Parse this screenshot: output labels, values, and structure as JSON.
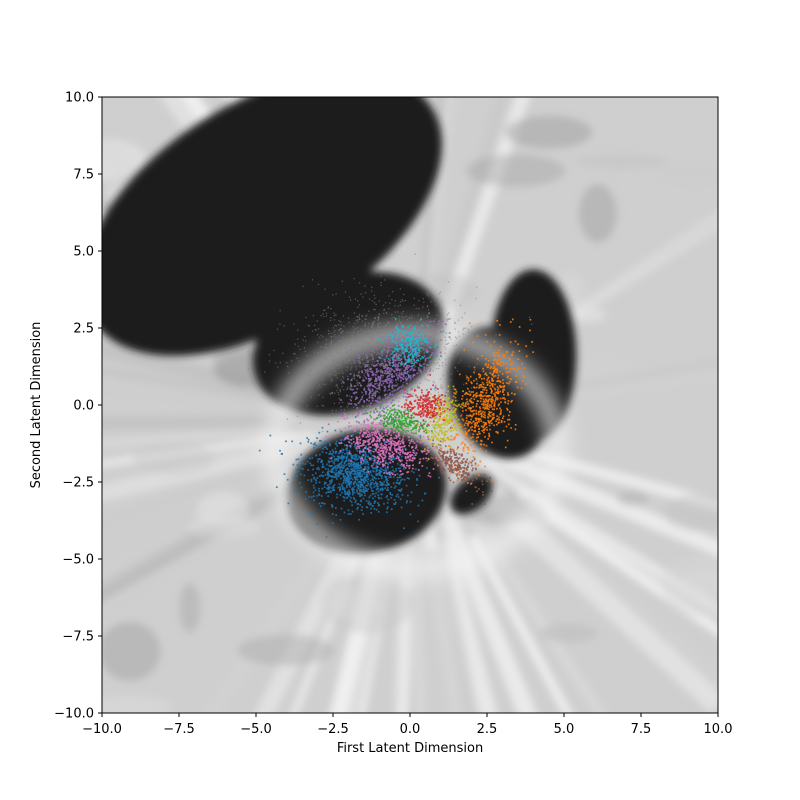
{
  "chart_data": {
    "type": "scatter",
    "title": "",
    "xlabel": "First Latent Dimension",
    "ylabel": "Second Latent Dimension",
    "xlim": [
      -10,
      10
    ],
    "ylim": [
      -10,
      10
    ],
    "xticks": [
      -10,
      -7.5,
      -5,
      -2.5,
      0,
      2.5,
      5,
      7.5,
      10
    ],
    "yticks": [
      -10,
      -7.5,
      -5,
      -2.5,
      0,
      2.5,
      5,
      7.5,
      10
    ],
    "xtick_labels": [
      "−10.0",
      "−7.5",
      "−5.0",
      "−2.5",
      "0.0",
      "2.5",
      "5.0",
      "7.5",
      "10.0"
    ],
    "ytick_labels": [
      "−10.0",
      "−7.5",
      "−5.0",
      "−2.5",
      "0.0",
      "2.5",
      "5.0",
      "7.5",
      "10.0"
    ],
    "grid": false,
    "background": "grayscale latent-space decoding heatmap",
    "dark_regions": [
      {
        "cx": -4.8,
        "cy": 6.2,
        "rx": 6.5,
        "ry": 3.6,
        "rot": -32
      },
      {
        "cx": -2.0,
        "cy": 2.0,
        "rx": 3.2,
        "ry": 2.2,
        "rot": -20
      },
      {
        "cx": -1.4,
        "cy": -2.8,
        "rx": 2.6,
        "ry": 2.0,
        "rot": -10
      },
      {
        "cx": 2.9,
        "cy": 0.4,
        "rx": 1.6,
        "ry": 2.2,
        "rot": -20
      },
      {
        "cx": 4.0,
        "cy": 1.6,
        "rx": 1.4,
        "ry": 2.8,
        "rot": 0
      },
      {
        "cx": 2.0,
        "cy": -2.9,
        "rx": 0.8,
        "ry": 0.5,
        "rot": -40
      }
    ],
    "series": [
      {
        "color": "#1f77b4",
        "center": [
          -1.8,
          -2.2
        ],
        "spread": [
          0.85,
          0.55
        ],
        "angle": -12,
        "count": 1100
      },
      {
        "color": "#ff7f0e",
        "center": [
          2.4,
          0.1
        ],
        "spread": [
          0.42,
          1.05
        ],
        "angle": -22,
        "count": 650
      },
      {
        "color": "#2ca02c",
        "center": [
          -0.4,
          -0.5
        ],
        "spread": [
          0.45,
          0.2
        ],
        "angle": -10,
        "count": 260
      },
      {
        "color": "#d62728",
        "center": [
          0.5,
          0.0
        ],
        "spread": [
          0.35,
          0.28
        ],
        "angle": 0,
        "count": 260
      },
      {
        "color": "#9467bd",
        "center": [
          -0.6,
          1.1
        ],
        "spread": [
          0.9,
          0.45
        ],
        "angle": 48,
        "count": 620
      },
      {
        "color": "#8c564b",
        "center": [
          1.4,
          -1.9
        ],
        "spread": [
          0.5,
          0.2
        ],
        "angle": -40,
        "count": 260
      },
      {
        "color": "#e377c2",
        "center": [
          -0.8,
          -1.3
        ],
        "spread": [
          0.7,
          0.35
        ],
        "angle": -18,
        "count": 520
      },
      {
        "color": "#7f7f7f",
        "center": [
          -1.0,
          1.7
        ],
        "spread": [
          1.4,
          0.9
        ],
        "angle": 10,
        "count": 1300
      },
      {
        "color": "#bcbd22",
        "center": [
          1.1,
          -0.5
        ],
        "spread": [
          0.25,
          0.45
        ],
        "angle": -20,
        "count": 220
      },
      {
        "color": "#17becf",
        "center": [
          -0.1,
          2.0
        ],
        "spread": [
          0.35,
          0.35
        ],
        "angle": 0,
        "count": 200
      }
    ]
  }
}
